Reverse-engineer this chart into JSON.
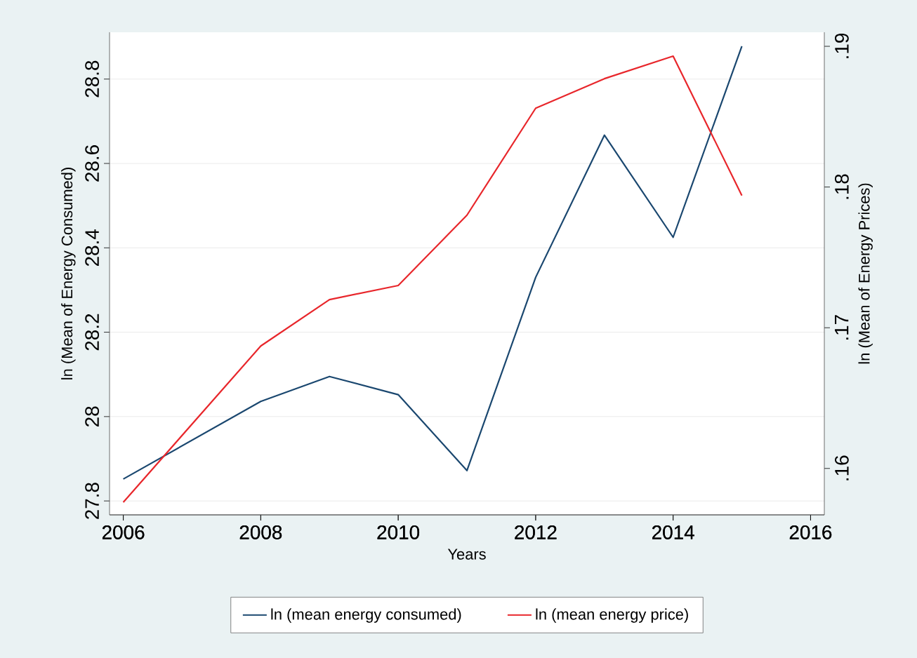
{
  "chart_data": {
    "type": "line",
    "xlabel": "Years",
    "ylabel": "ln (Mean of Energy Consumed)",
    "y2label": "ln (Mean of Energy Prices)",
    "x": [
      2006,
      2008,
      2009,
      2010,
      2011,
      2012,
      2013,
      2014,
      2015
    ],
    "series": [
      {
        "name": "ln (mean energy consumed)",
        "color": "#1a476f",
        "values": [
          27.852,
          28.036,
          28.095,
          28.052,
          27.872,
          28.33,
          28.667,
          28.425,
          28.878
        ]
      },
      {
        "name": "ln (mean energy price)",
        "color": "#e8262b",
        "axis": "y2",
        "values": [
          0.1576,
          0.1687,
          0.172,
          0.173,
          0.178,
          0.1856,
          0.1877,
          0.1893,
          0.1794
        ]
      }
    ],
    "xlim": [
      2005.8,
      2016.2
    ],
    "xticks": [
      2006,
      2008,
      2010,
      2012,
      2014,
      2016
    ],
    "ylim": [
      27.767,
      28.911
    ],
    "yticks": [
      27.8,
      28,
      28.2,
      28.4,
      28.6,
      28.8
    ],
    "y2lim": [
      0.1567,
      0.191
    ],
    "y2ticks": [
      {
        "value": 0.16,
        "label": ".16"
      },
      {
        "value": 0.17,
        "label": ".17"
      },
      {
        "value": 0.18,
        "label": ".18"
      },
      {
        "value": 0.19,
        "label": ".19"
      }
    ],
    "grid": "y",
    "legend": "bottom",
    "marker": "none",
    "line_style": "solid"
  }
}
